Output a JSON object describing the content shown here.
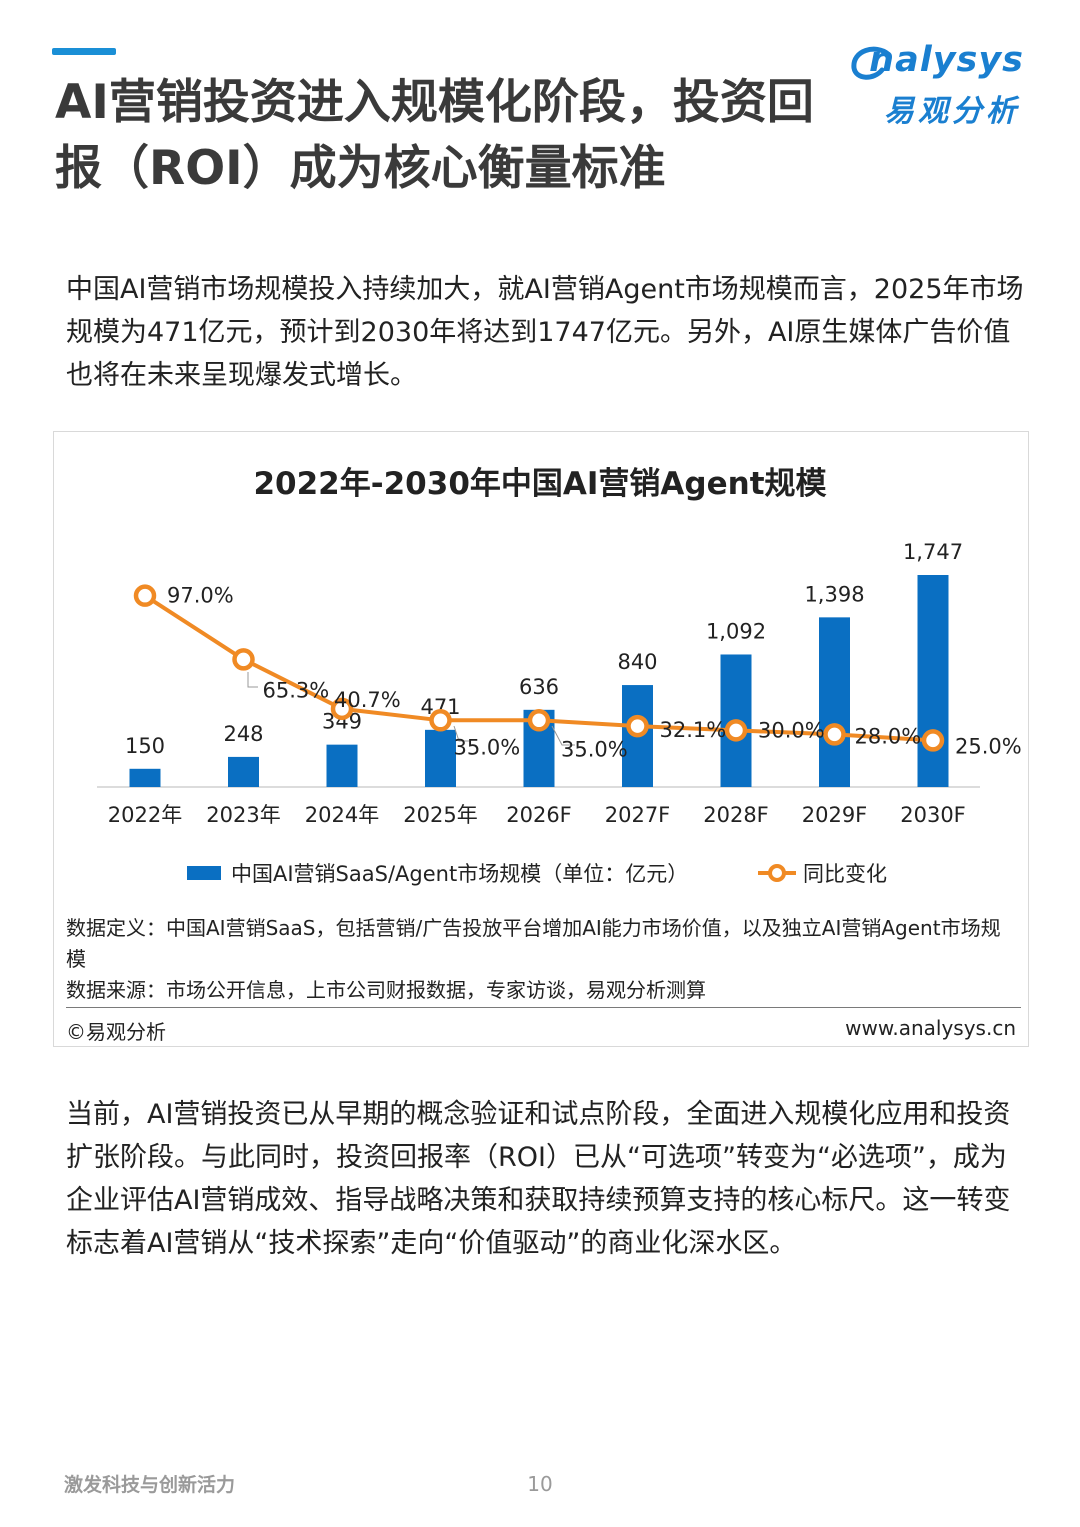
{
  "header": {
    "title": "AI营销投资进入规模化阶段，投资回报（ROI）成为核心衡量标准",
    "logo_en": "nalysys",
    "logo_cn": "易观分析"
  },
  "intro": "中国AI营销市场规模投入持续加大，就AI营销Agent市场规模而言，2025年市场规模为471亿元，预计到2030年将达到1747亿元。另外，AI原生媒体广告价值也将在未来呈现爆发式增长。",
  "chart_data": {
    "type": "bar",
    "title": "2022年-2030年中国AI营销Agent规模",
    "categories": [
      "2022年",
      "2023年",
      "2024年",
      "2025年",
      "2026F",
      "2027F",
      "2028F",
      "2029F",
      "2030F"
    ],
    "series": [
      {
        "name": "中国AI营销SaaS/Agent市场规模（单位：亿元）",
        "type": "bar",
        "values": [
          150,
          248,
          349,
          471,
          636,
          840,
          1092,
          1398,
          1747
        ],
        "labels": [
          "150",
          "248",
          "349",
          "471",
          "636",
          "840",
          "1,092",
          "1,398",
          "1,747"
        ],
        "color": "#0a6fc2"
      },
      {
        "name": "同比变化",
        "type": "line",
        "values": [
          97.0,
          65.3,
          40.7,
          35.0,
          35.0,
          32.1,
          30.0,
          28.0,
          25.0
        ],
        "labels": [
          "97.0%",
          "65.3%",
          "40.7%",
          "35.0%",
          "35.0%",
          "32.1%",
          "30.0%",
          "28.0%",
          "25.0%"
        ],
        "color": "#f08a24"
      }
    ],
    "legend_position": "bottom",
    "grid": false
  },
  "chart_notes": {
    "definition": "数据定义：中国AI营销SaaS，包括营销/广告投放平台增加AI能力市场价值，以及独立AI营销Agent市场规模",
    "source": "数据来源：市场公开信息，上市公司财报数据，专家访谈，易观分析测算",
    "copyright": "©易观分析",
    "site": "www.analysys.cn"
  },
  "body": "当前，AI营销投资已从早期的概念验证和试点阶段，全面进入规模化应用和投资扩张阶段。与此同时，投资回报率（ROI）已从“可选项”转变为“必选项”，成为企业评估AI营销成效、指导战略决策和获取持续预算支持的核心标尺。这一转变标志着AI营销从“技术探索”走向“价值驱动”的商业化深水区。",
  "footer": {
    "tagline": "激发科技与创新活力",
    "page": "10"
  }
}
